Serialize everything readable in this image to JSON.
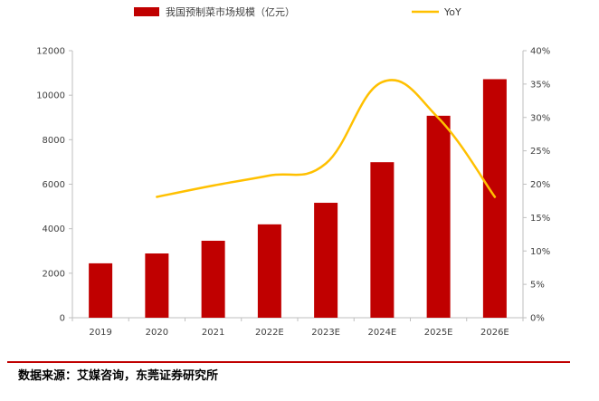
{
  "chart_data": {
    "type": "bar",
    "categories": [
      "2019",
      "2020",
      "2021",
      "2022E",
      "2023E",
      "2024E",
      "2025E",
      "2026E"
    ],
    "series": [
      {
        "name": "我国预制菜市场规模（亿元）",
        "type": "bar",
        "axis": "left",
        "color": "#c00000",
        "values": [
          2445,
          2888,
          3459,
          4196,
          5165,
          6989,
          9076,
          10720
        ]
      },
      {
        "name": "YoY",
        "type": "line",
        "axis": "right",
        "color": "#ffc000",
        "values": [
          null,
          18.1,
          19.8,
          21.3,
          23.1,
          35.3,
          29.9,
          18.1
        ]
      }
    ],
    "y_left": {
      "min": 0,
      "max": 12000,
      "step": 2000,
      "ticks": [
        "0",
        "2000",
        "4000",
        "6000",
        "8000",
        "10000",
        "12000"
      ]
    },
    "y_right": {
      "min": 0,
      "max": 40,
      "step": 5,
      "ticks": [
        "0%",
        "5%",
        "10%",
        "15%",
        "20%",
        "25%",
        "30%",
        "35%",
        "40%"
      ]
    },
    "grid": false,
    "legend_position": "top"
  },
  "source_note": "数据来源：艾媒咨询，东莞证券研究所"
}
